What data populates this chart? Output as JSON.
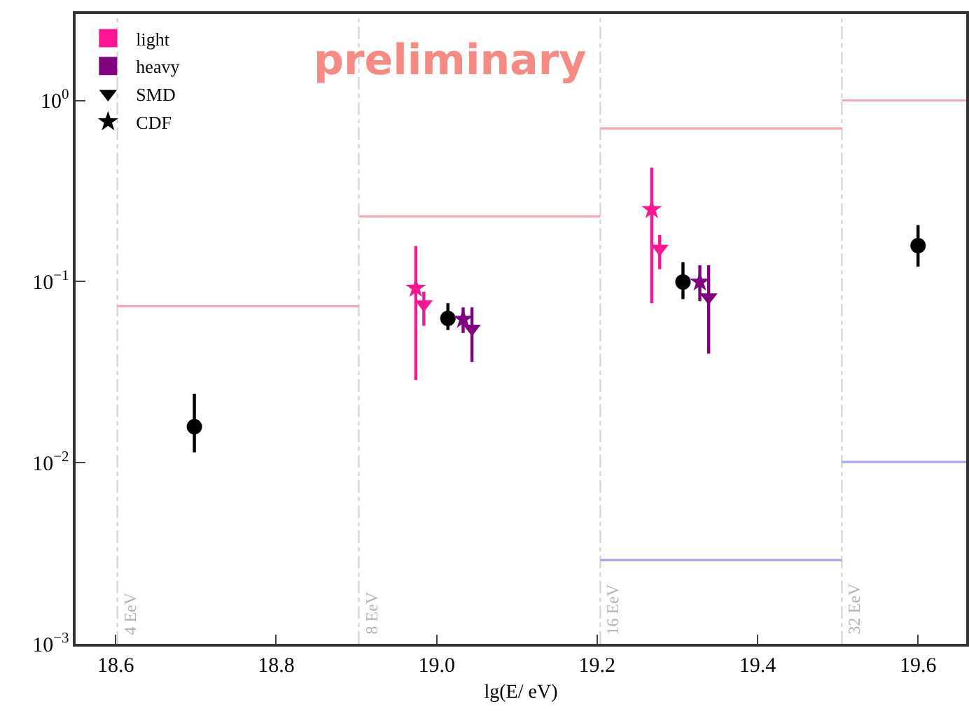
{
  "chart_data": {
    "type": "scatter",
    "xlabel": "lg(E/ eV)",
    "annotations": [
      "preliminary"
    ],
    "xlim": [
      18.55,
      19.66
    ],
    "xticks": [
      18.6,
      18.8,
      {
        "value": 19,
        "label": "19.0"
      },
      19.2,
      19.4,
      19.6
    ],
    "ylim": [
      0.001,
      3
    ],
    "yticks": [
      {
        "value": 0.001,
        "label": "10$^{−3}$"
      },
      {
        "value": 0.01,
        "label": "10$^{−2}$"
      },
      {
        "value": 0.1,
        "label": "10$^{−1}$"
      },
      {
        "value": 1,
        "label": "10$^{0}$"
      }
    ],
    "log": true,
    "grid": false,
    "legend": "top left",
    "ref_lines": [
      {
        "axis": "x",
        "value": 18.602,
        "label": "4 EeV",
        "color": "#d0d0d0",
        "line_style": "dashed"
      },
      {
        "axis": "x",
        "value": 18.903,
        "label": "8 EeV",
        "color": "#d0d0d0",
        "line_style": "dashed"
      },
      {
        "axis": "x",
        "value": 19.204,
        "label": "16 EeV",
        "color": "#d0d0d0",
        "line_style": "dashed"
      },
      {
        "axis": "x",
        "value": 19.505,
        "label": "32 EeV",
        "color": "#d0d0d0",
        "line_style": "dashed"
      }
    ],
    "series": [
      {
        "name": "light",
        "color": "#ff1493",
        "marker": "square"
      },
      {
        "name": "heavy",
        "color": "#800080",
        "marker": "square"
      },
      {
        "name": "SMD",
        "color": "#000000",
        "marker": "triangle"
      },
      {
        "name": "CDF",
        "color": "#000000",
        "marker": "star"
      },
      {
        "type": "line",
        "color": "#f8a8b4",
        "marker": "none",
        "x": [
          18.602,
          18.903
        ],
        "values": [
          0.073,
          0.073
        ]
      },
      {
        "type": "line",
        "color": "#f8a8b4",
        "marker": "none",
        "x": [
          18.903,
          19.204
        ],
        "values": [
          0.229,
          0.229
        ]
      },
      {
        "type": "line",
        "color": "#f8a8b4",
        "marker": "none",
        "x": [
          19.204,
          19.505
        ],
        "values": [
          0.7,
          0.7
        ]
      },
      {
        "type": "line",
        "color": "#f8a8b4",
        "marker": "none",
        "x": [
          19.505,
          19.66
        ],
        "values": [
          1.0,
          1.0
        ]
      },
      {
        "type": "line",
        "color": "#a8a8f0",
        "marker": "none",
        "x": [
          19.204,
          19.505
        ],
        "values": [
          0.0029,
          0.0029
        ]
      },
      {
        "type": "line",
        "color": "#a8a8f0",
        "marker": "none",
        "x": [
          19.505,
          19.66
        ],
        "values": [
          0.0101,
          0.0101
        ]
      },
      {
        "color": "#000000",
        "marker": "circle",
        "x": [
          18.698,
          19.014,
          19.307,
          19.6
        ],
        "values": [
          0.0158,
          0.0626,
          0.0995,
          0.158
        ],
        "errors": [
          [
            0.0114,
            0.024
          ],
          [
            0.054,
            0.076
          ],
          [
            0.08,
            0.128
          ],
          [
            0.121,
            0.205
          ]
        ]
      },
      {
        "color": "#ff1493",
        "marker": "star",
        "x": [
          18.974,
          19.268
        ],
        "values": [
          0.092,
          0.25
        ],
        "errors": [
          [
            0.0286,
            0.157
          ],
          [
            0.076,
            0.426
          ]
        ]
      },
      {
        "color": "#ff1493",
        "marker": "triangle",
        "x": [
          18.984,
          19.278
        ],
        "values": [
          0.075,
          0.152
        ],
        "errors": [
          [
            0.057,
            0.088
          ],
          [
            0.117,
            0.181
          ]
        ]
      },
      {
        "color": "#800080",
        "marker": "star",
        "x": [
          19.033,
          19.328
        ],
        "values": [
          0.062,
          0.0995
        ],
        "errors": [
          [
            0.052,
            0.072
          ],
          [
            0.078,
            0.123
          ]
        ]
      },
      {
        "color": "#800080",
        "marker": "triangle",
        "x": [
          19.044,
          19.339
        ],
        "values": [
          0.055,
          0.082
        ],
        "errors": [
          [
            0.036,
            0.072
          ],
          [
            0.04,
            0.123
          ]
        ]
      }
    ]
  }
}
